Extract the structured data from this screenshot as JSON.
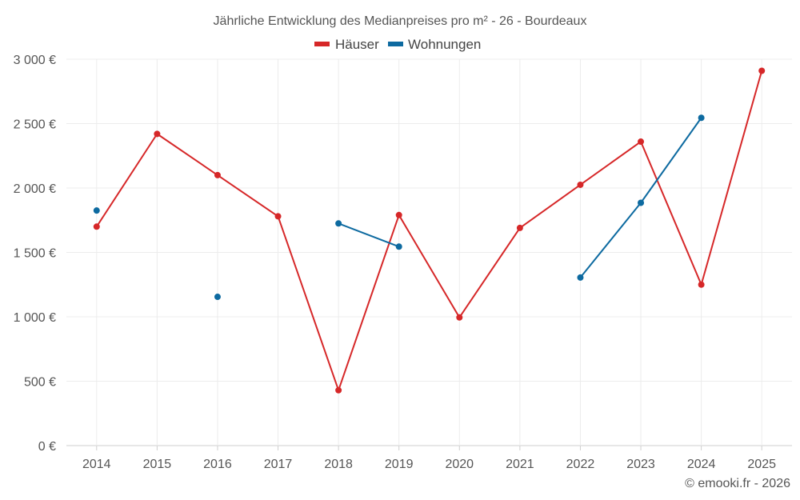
{
  "chart_data": {
    "type": "line",
    "title": "Jährliche Entwicklung des Medianpreises pro m² - 26 - Bourdeaux",
    "categories": [
      "2014",
      "2015",
      "2016",
      "2017",
      "2018",
      "2019",
      "2020",
      "2021",
      "2022",
      "2023",
      "2024",
      "2025"
    ],
    "ylim": [
      0,
      3000
    ],
    "yticks": [
      0,
      500,
      1000,
      1500,
      2000,
      2500,
      3000
    ],
    "ytick_labels": [
      "0 €",
      "500 €",
      "1 000 €",
      "1 500 €",
      "2 000 €",
      "2 500 €",
      "3 000 €"
    ],
    "grid": true,
    "legend_position": "top-center",
    "series": [
      {
        "name": "Häuser",
        "color": "#d62728",
        "values": [
          1700,
          2420,
          2100,
          1780,
          430,
          1790,
          995,
          1690,
          2025,
          2360,
          1250,
          2910
        ]
      },
      {
        "name": "Wohnungen",
        "color": "#0d6aa0",
        "values": [
          1825,
          null,
          1155,
          null,
          1725,
          1545,
          null,
          null,
          1305,
          1885,
          2545,
          null
        ]
      }
    ],
    "credit": "© emooki.fr - 2026"
  }
}
